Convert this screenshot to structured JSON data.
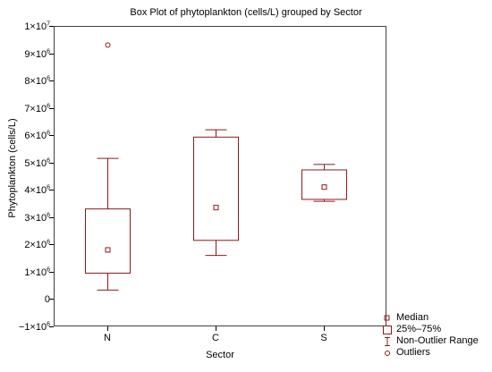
{
  "chart_data": {
    "type": "box",
    "title": "Box Plot of phytoplankton (cells/L) grouped by  Sector",
    "xlabel": "Sector",
    "ylabel": "Phytoplankton (cells/L)",
    "ylim": [
      -1000000,
      10000000
    ],
    "grid": false,
    "legend_position": "bottom-right",
    "y_ticks": [
      {
        "value": 10000000,
        "mant": "1×10",
        "exp": "7"
      },
      {
        "value": 9000000,
        "mant": "9×10",
        "exp": "6"
      },
      {
        "value": 8000000,
        "mant": "8×10",
        "exp": "6"
      },
      {
        "value": 7000000,
        "mant": "7×10",
        "exp": "6"
      },
      {
        "value": 6000000,
        "mant": "6×10",
        "exp": "6"
      },
      {
        "value": 5000000,
        "mant": "5×10",
        "exp": "6"
      },
      {
        "value": 4000000,
        "mant": "4×10",
        "exp": "6"
      },
      {
        "value": 3000000,
        "mant": "3×10",
        "exp": "6"
      },
      {
        "value": 2000000,
        "mant": "2×10",
        "exp": "6"
      },
      {
        "value": 1000000,
        "mant": "1×10",
        "exp": "6"
      },
      {
        "value": 0,
        "mant": "0",
        "exp": ""
      },
      {
        "value": -1000000,
        "mant": "−1×10",
        "exp": "6"
      }
    ],
    "categories": [
      "N",
      "C",
      "S"
    ],
    "boxes": [
      {
        "category": "N",
        "median": 1800000,
        "q1": 950000,
        "q3": 3300000,
        "whisker_low": 330000,
        "whisker_high": 5150000,
        "outliers": [
          9300000
        ]
      },
      {
        "category": "C",
        "median": 3350000,
        "q1": 2150000,
        "q3": 5930000,
        "whisker_low": 1600000,
        "whisker_high": 6200000,
        "outliers": []
      },
      {
        "category": "S",
        "median": 4100000,
        "q1": 3650000,
        "q3": 4730000,
        "whisker_low": 3580000,
        "whisker_high": 4930000,
        "outliers": []
      }
    ],
    "legend": [
      "Median",
      "25%–75%",
      "Non-Outlier Range",
      "Outliers"
    ],
    "colors": {
      "box": "#8b1a1a",
      "frame": "#404040"
    }
  }
}
